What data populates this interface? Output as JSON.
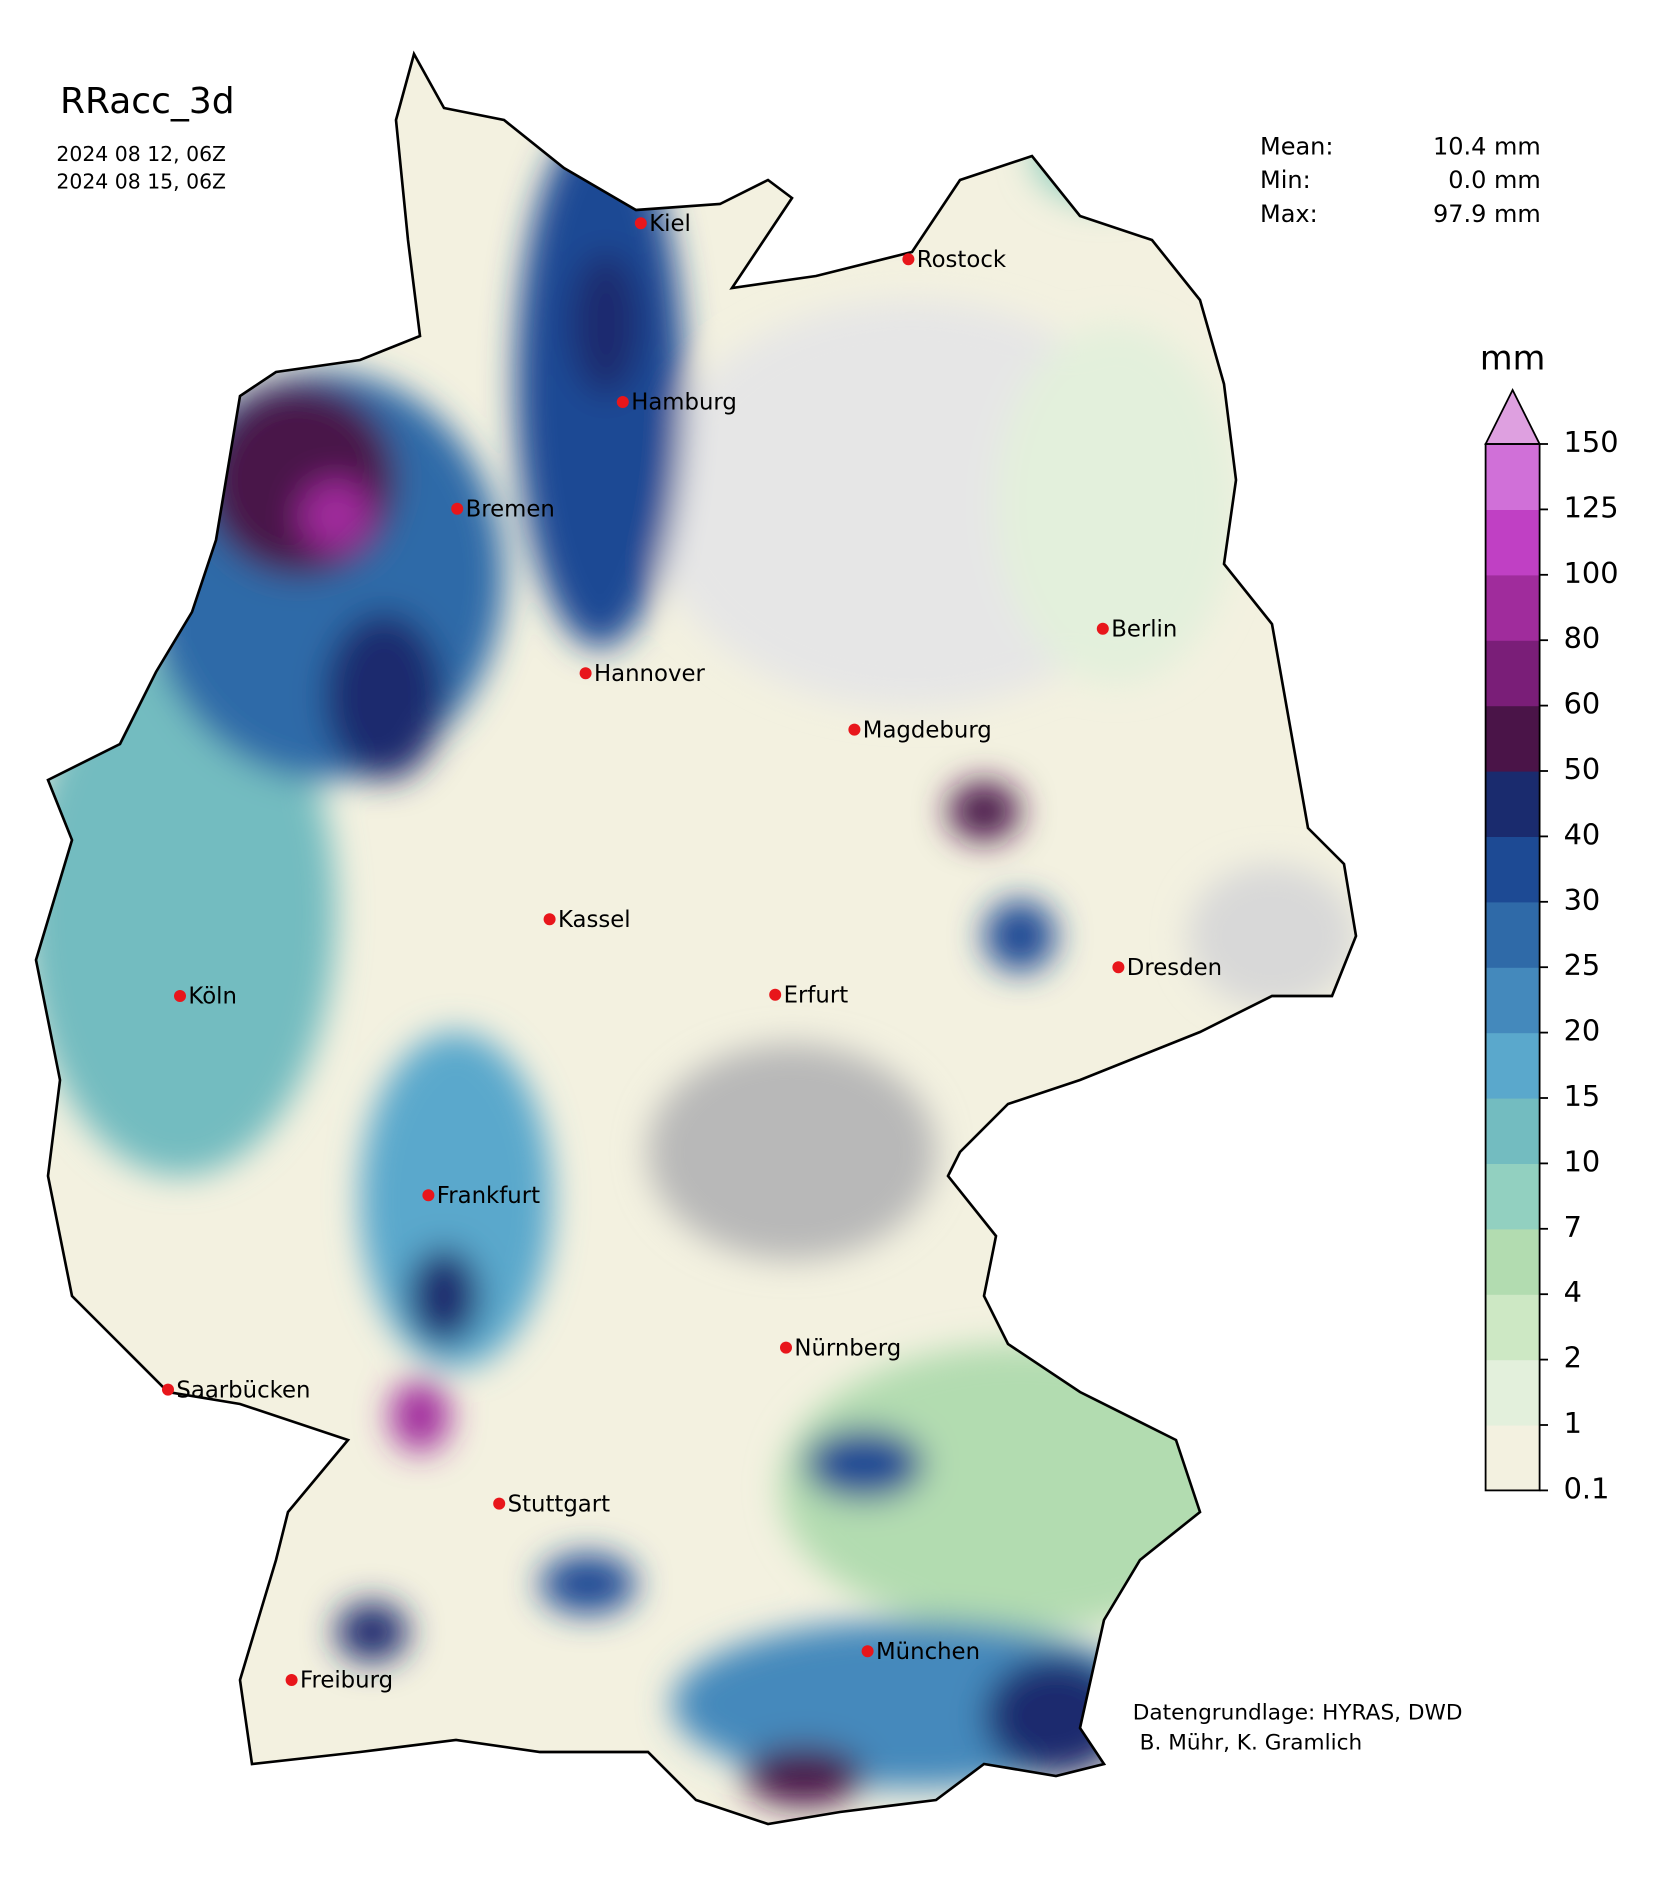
{
  "title": "RRacc_3d",
  "period": [
    "2024 08 12, 06Z",
    "2024 08 15, 06Z"
  ],
  "stats": [
    {
      "label": "Mean:",
      "value": "10.4 mm"
    },
    {
      "label": "Min:",
      "value": "0.0 mm"
    },
    {
      "label": "Max:",
      "value": "97.9 mm"
    }
  ],
  "colorbar": {
    "unit": "mm",
    "levels": [
      0.1,
      1,
      2,
      4,
      7,
      10,
      15,
      20,
      25,
      30,
      40,
      50,
      60,
      80,
      100,
      125,
      150
    ],
    "colors": [
      "#f3f1e0",
      "#e3f0dc",
      "#cde8c4",
      "#b2dcb0",
      "#92d0c0",
      "#73bcc0",
      "#5aa8cc",
      "#4489bc",
      "#2f6aa8",
      "#1d4a94",
      "#1a2b6e",
      "#4a1448",
      "#7a1e78",
      "#a02c9c",
      "#c040c4",
      "#d070d8"
    ],
    "extend_color": "#dea0e0"
  },
  "cities": [
    "Kiel",
    "Rostock",
    "Hamburg",
    "Bremen",
    "Berlin",
    "Hannover",
    "Magdeburg",
    "Kassel",
    "Dresden",
    "Köln",
    "Erfurt",
    "Frankfurt",
    "Nürnberg",
    "Saarbücken",
    "Stuttgart",
    "München",
    "Freiburg"
  ],
  "credits": [
    "Datengrundlage: HYRAS, DWD",
    " B. Mühr, K. Gramlich"
  ]
}
